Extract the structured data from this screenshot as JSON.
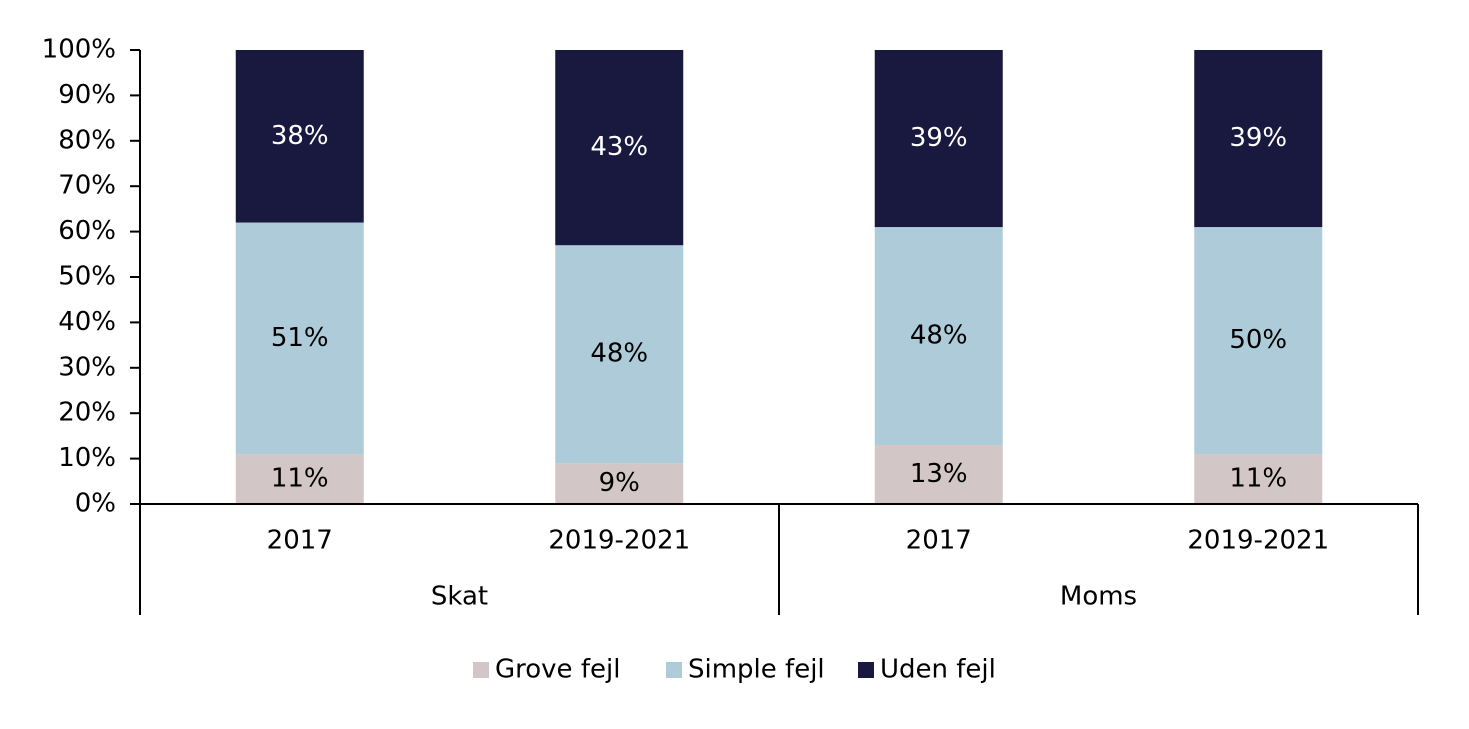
{
  "chart_data": {
    "type": "stacked-bar",
    "groups": [
      {
        "name": "Skat",
        "categories": [
          "2017",
          "2019-2021"
        ]
      },
      {
        "name": "Moms",
        "categories": [
          "2017",
          "2019-2021"
        ]
      }
    ],
    "series": [
      {
        "name": "Grove fejl",
        "color": "#d3c6c6",
        "values": [
          11,
          9,
          13,
          11
        ],
        "value_labels": [
          "11%",
          "9%",
          "13%",
          "11%"
        ]
      },
      {
        "name": "Simple fejl",
        "color": "#aecbd9",
        "values": [
          51,
          48,
          48,
          50
        ],
        "value_labels": [
          "51%",
          "48%",
          "48%",
          "50%"
        ]
      },
      {
        "name": "Uden fejl",
        "color": "#19183f",
        "values": [
          38,
          43,
          39,
          39
        ],
        "value_labels": [
          "38%",
          "43%",
          "39%",
          "39%"
        ]
      }
    ],
    "ylim": [
      0,
      100
    ],
    "yticks": [
      {
        "value": 0,
        "label": "0%"
      },
      {
        "value": 10,
        "label": "10%"
      },
      {
        "value": 20,
        "label": "20%"
      },
      {
        "value": 30,
        "label": "30%"
      },
      {
        "value": 40,
        "label": "40%"
      },
      {
        "value": 50,
        "label": "50%"
      },
      {
        "value": 60,
        "label": "60%"
      },
      {
        "value": 70,
        "label": "70%"
      },
      {
        "value": 80,
        "label": "80%"
      },
      {
        "value": 90,
        "label": "90%"
      },
      {
        "value": 100,
        "label": "100%"
      }
    ],
    "legend": "bottom"
  }
}
